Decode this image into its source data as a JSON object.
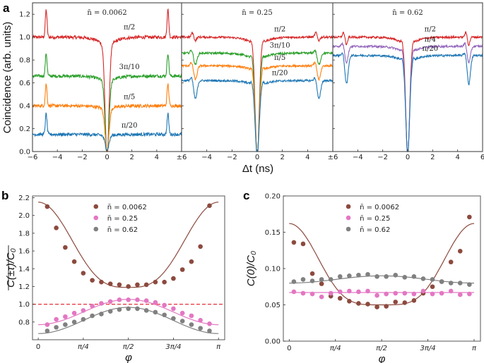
{
  "chart_data": [
    {
      "panel": "a",
      "type": "line",
      "ylabel": "Coincidence (arb. units)",
      "xlabel": "Δt (ns)",
      "ylim": [
        0,
        1.3
      ],
      "yticks": [
        "0.0",
        "0.2",
        "0.4",
        "0.6",
        "0.8",
        "1.0",
        "1.2"
      ],
      "yticks_values": [
        0,
        0.2,
        0.4,
        0.6,
        0.8,
        1.0,
        1.2
      ],
      "xlim": [
        -6,
        6
      ],
      "xticks_values": [
        -6,
        -4,
        -2,
        0,
        2,
        4,
        6
      ],
      "xtick_labels": [
        [
          "−6",
          "−4",
          "−2",
          "0",
          "2",
          "4",
          "±6"
        ],
        [
          "",
          "−4",
          "−2",
          "0",
          "2",
          "4",
          "±6"
        ],
        [
          "",
          "−4",
          "−2",
          "0",
          "2",
          "4",
          "6"
        ]
      ],
      "subplots": [
        {
          "title": "n̄ = 0.0062",
          "series": [
            {
              "name": "π/2",
              "color": "#d62728",
              "baseline": 1.0,
              "dip_min": 0.05,
              "side_peak": 1.24,
              "side_type": "peak"
            },
            {
              "name": "3π/10",
              "color": "#2ca02c",
              "baseline": 0.66,
              "dip_min": 0.05,
              "side_peak": 0.86,
              "side_type": "peak"
            },
            {
              "name": "π/5",
              "color": "#ff7f0e",
              "baseline": 0.4,
              "dip_min": 0.04,
              "side_peak": 0.59,
              "side_type": "peak"
            },
            {
              "name": "π/20",
              "color": "#1f77b4",
              "baseline": 0.15,
              "dip_min": 0.03,
              "side_peak": 0.33,
              "side_type": "peak"
            }
          ],
          "annotations": [
            {
              "text": "π/2",
              "x": 1.8,
              "y": 1.07
            },
            {
              "text": "3π/10",
              "x": 1.8,
              "y": 0.72
            },
            {
              "text": "π/5",
              "x": 1.8,
              "y": 0.46
            },
            {
              "text": "π/20",
              "x": 1.8,
              "y": 0.21
            }
          ]
        },
        {
          "title": "n̄ = 0.25",
          "series": [
            {
              "name": "π/2",
              "color": "#d62728",
              "baseline": 1.0,
              "dip_min": 0.05,
              "side_peak": 0.97,
              "side_type": "wiggle"
            },
            {
              "name": "3π/10",
              "color": "#2ca02c",
              "baseline": 0.86,
              "dip_min": 0.05,
              "side_peak": 0.76,
              "side_type": "dip"
            },
            {
              "name": "π/5",
              "color": "#ff7f0e",
              "baseline": 0.75,
              "dip_min": 0.04,
              "side_peak": 0.63,
              "side_type": "dip"
            },
            {
              "name": "π/20",
              "color": "#1f77b4",
              "baseline": 0.62,
              "dip_min": 0.03,
              "side_peak": 0.46,
              "side_type": "dip"
            }
          ],
          "annotations": [
            {
              "text": "π/2",
              "x": 1.8,
              "y": 1.05
            },
            {
              "text": "3π/10",
              "x": 1.8,
              "y": 0.91
            },
            {
              "text": "π/5",
              "x": 1.8,
              "y": 0.8
            },
            {
              "text": "π/20",
              "x": 1.8,
              "y": 0.67
            }
          ]
        },
        {
          "title": "n̄ = 0.62",
          "series": [
            {
              "name": "π/2",
              "color": "#d62728",
              "baseline": 1.0,
              "dip_min": 0.07,
              "side_peak": 0.93,
              "side_type": "wiggle"
            },
            {
              "name": "π/4",
              "color": "#9467bd",
              "baseline": 0.92,
              "dip_min": 0.07,
              "side_peak": 0.78,
              "side_type": "dip"
            },
            {
              "name": "π/20",
              "color": "#1f77b4",
              "baseline": 0.84,
              "dip_min": 0.07,
              "side_peak": 0.59,
              "side_type": "dip"
            }
          ],
          "annotations": [
            {
              "text": "π/2",
              "x": 1.8,
              "y": 1.05
            },
            {
              "text": "π/4",
              "x": 1.8,
              "y": 0.96
            },
            {
              "text": "π/20",
              "x": 1.8,
              "y": 0.88
            }
          ]
        }
      ]
    },
    {
      "panel": "b",
      "type": "scatter",
      "ylabel": "C(±τ)/C₀ (overline)",
      "xlabel": "φ",
      "xlim": [
        -0.1,
        3.25
      ],
      "ylim": [
        0.6,
        2.22
      ],
      "yticks": [
        "0.8",
        "1.0",
        "1.2",
        "1.4",
        "1.6",
        "1.8",
        "2.0",
        "2.2"
      ],
      "yticks_values": [
        0.8,
        1.0,
        1.2,
        1.4,
        1.6,
        1.8,
        2.0,
        2.2
      ],
      "xticks": [
        "0",
        "π/4",
        "π/2",
        "3π/4",
        "π"
      ],
      "xticks_values": [
        0,
        0.7854,
        1.5708,
        2.3562,
        3.1416
      ],
      "reference_line": {
        "y": 1.0,
        "color": "#e8303a",
        "style": "dashed"
      },
      "legend": {
        "position": "top-center",
        "entries": [
          "n̄ = 0.0062",
          "n̄ = 0.25",
          "n̄ = 0.62"
        ]
      },
      "series": [
        {
          "name": "n̄ = 0.0062",
          "color": "#8c4a3e",
          "x": [
            0.157,
            0.314,
            0.471,
            0.628,
            0.785,
            0.942,
            1.1,
            1.257,
            1.414,
            1.571,
            1.728,
            1.885,
            2.042,
            2.199,
            2.356,
            2.513,
            2.67,
            2.827,
            2.985
          ],
          "y": [
            2.1,
            1.86,
            1.64,
            1.48,
            1.35,
            1.27,
            1.25,
            1.23,
            1.22,
            1.2,
            1.22,
            1.22,
            1.25,
            1.25,
            1.29,
            1.39,
            1.48,
            1.65,
            2.11
          ],
          "fit": {
            "min": 1.19,
            "max": 2.15
          }
        },
        {
          "name": "n̄ = 0.25",
          "color": "#e377c2",
          "x": [
            0.157,
            0.314,
            0.471,
            0.628,
            0.785,
            0.942,
            1.1,
            1.257,
            1.414,
            1.571,
            1.728,
            1.885,
            2.042,
            2.199,
            2.356,
            2.513,
            2.67,
            2.827,
            2.985
          ],
          "y": [
            0.77,
            0.83,
            0.86,
            0.9,
            0.93,
            0.98,
            1.01,
            1.03,
            1.05,
            1.05,
            1.05,
            1.04,
            1.02,
            0.99,
            0.95,
            0.9,
            0.87,
            0.82,
            0.78
          ],
          "fit": {
            "min": 0.77,
            "max": 1.055
          }
        },
        {
          "name": "n̄ = 0.62",
          "color": "#808080",
          "x": [
            0.157,
            0.314,
            0.471,
            0.628,
            0.785,
            0.942,
            1.1,
            1.257,
            1.414,
            1.571,
            1.728,
            1.885,
            2.042,
            2.199,
            2.356,
            2.513,
            2.67,
            2.827,
            2.985
          ],
          "y": [
            0.7,
            0.74,
            0.77,
            0.8,
            0.83,
            0.87,
            0.89,
            0.92,
            0.94,
            0.95,
            0.95,
            0.93,
            0.91,
            0.88,
            0.84,
            0.81,
            0.77,
            0.73,
            0.7
          ],
          "fit": {
            "min": 0.67,
            "max": 0.965
          }
        }
      ]
    },
    {
      "panel": "c",
      "type": "scatter",
      "ylabel": "C(0)/C₀",
      "xlabel": "φ",
      "xlim": [
        -0.1,
        3.25
      ],
      "ylim": [
        0.0,
        0.2
      ],
      "yticks": [
        "0.00",
        "0.05",
        "0.10",
        "0.15",
        "0.20"
      ],
      "yticks_values": [
        0,
        0.05,
        0.1,
        0.15,
        0.2
      ],
      "xticks": [
        "0",
        "π/4",
        "π/2",
        "3π/4",
        "π"
      ],
      "xticks_values": [
        0,
        0.7854,
        1.5708,
        2.3562,
        3.1416
      ],
      "legend": {
        "position": "top-center",
        "entries": [
          "n̄ = 0.0062",
          "n̄ = 0.25",
          "n̄ = 0.62"
        ]
      },
      "series": [
        {
          "name": "n̄ = 0.0062",
          "color": "#8c4a3e",
          "x": [
            0.079,
            0.236,
            0.393,
            0.55,
            0.707,
            0.864,
            1.021,
            1.178,
            1.335,
            1.492,
            1.649,
            1.806,
            1.963,
            2.12,
            2.277,
            2.434,
            2.591,
            2.748,
            2.905,
            3.062
          ],
          "y": [
            0.136,
            0.134,
            0.093,
            0.079,
            0.062,
            0.059,
            0.055,
            0.052,
            0.051,
            0.047,
            0.048,
            0.054,
            0.053,
            0.056,
            0.066,
            0.075,
            0.082,
            0.109,
            0.124,
            0.171
          ],
          "fit": {
            "type": "well",
            "min": 0.05,
            "max": 0.162
          }
        },
        {
          "name": "n̄ = 0.25",
          "color": "#e377c2",
          "x": [
            0.079,
            0.236,
            0.393,
            0.55,
            0.707,
            0.864,
            1.021,
            1.178,
            1.335,
            1.492,
            1.649,
            1.806,
            1.963,
            2.12,
            2.277,
            2.434,
            2.591,
            2.748,
            2.905,
            3.062
          ],
          "y": [
            0.068,
            0.066,
            0.065,
            0.061,
            0.066,
            0.068,
            0.069,
            0.068,
            0.069,
            0.063,
            0.065,
            0.066,
            0.066,
            0.065,
            0.069,
            0.065,
            0.066,
            0.069,
            0.064,
            0.065
          ],
          "fit": {
            "type": "flat",
            "value": 0.067
          }
        },
        {
          "name": "n̄ = 0.62",
          "color": "#808080",
          "x": [
            0.079,
            0.236,
            0.393,
            0.55,
            0.707,
            0.864,
            1.021,
            1.178,
            1.335,
            1.492,
            1.649,
            1.806,
            1.963,
            2.12,
            2.277,
            2.434,
            2.591,
            2.748,
            2.905,
            3.062
          ],
          "y": [
            0.082,
            0.085,
            0.083,
            0.085,
            0.085,
            0.089,
            0.09,
            0.091,
            0.092,
            0.089,
            0.089,
            0.091,
            0.088,
            0.089,
            0.086,
            0.085,
            0.082,
            0.08,
            0.08,
            0.078
          ],
          "fit": {
            "type": "hump",
            "min": 0.08,
            "max": 0.09
          }
        }
      ]
    }
  ],
  "labels": {
    "a": "a",
    "b": "b",
    "c": "c"
  }
}
